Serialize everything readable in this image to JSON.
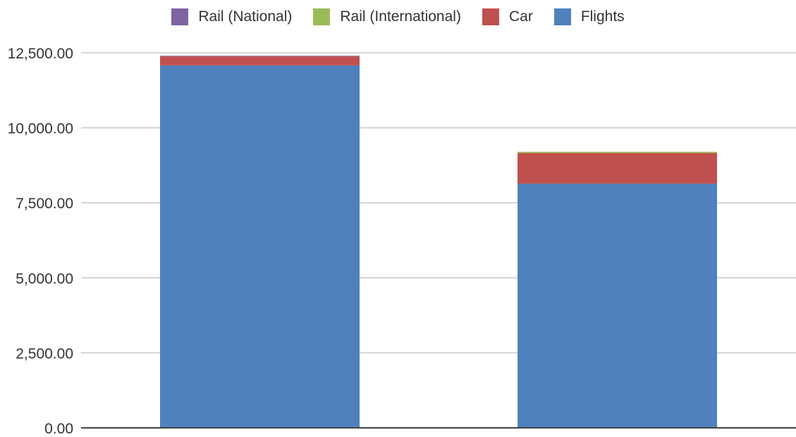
{
  "chart_data": {
    "type": "bar",
    "stacked": true,
    "categories": [
      "",
      ""
    ],
    "series": [
      {
        "name": "Flights",
        "values": [
          12080,
          8140
        ],
        "color": "#4f81bd"
      },
      {
        "name": "Car",
        "values": [
          300,
          1020
        ],
        "color": "#c0504d"
      },
      {
        "name": "Rail (International)",
        "values": [
          0,
          40
        ],
        "color": "#9bbb59"
      },
      {
        "name": "Rail (National)",
        "values": [
          20,
          0
        ],
        "color": "#8064a2"
      }
    ],
    "legend_order": [
      "Rail (National)",
      "Rail (International)",
      "Car",
      "Flights"
    ],
    "ylim": [
      0,
      12500
    ],
    "yticks": [
      "0.00",
      "2,500.00",
      "5,000.00",
      "7,500.00",
      "10,000.00",
      "12,500.00"
    ],
    "ytick_values": [
      0,
      2500,
      5000,
      7500,
      10000,
      12500
    ],
    "title": "",
    "xlabel": "",
    "ylabel": "",
    "grid": true,
    "legend_position": "top"
  }
}
